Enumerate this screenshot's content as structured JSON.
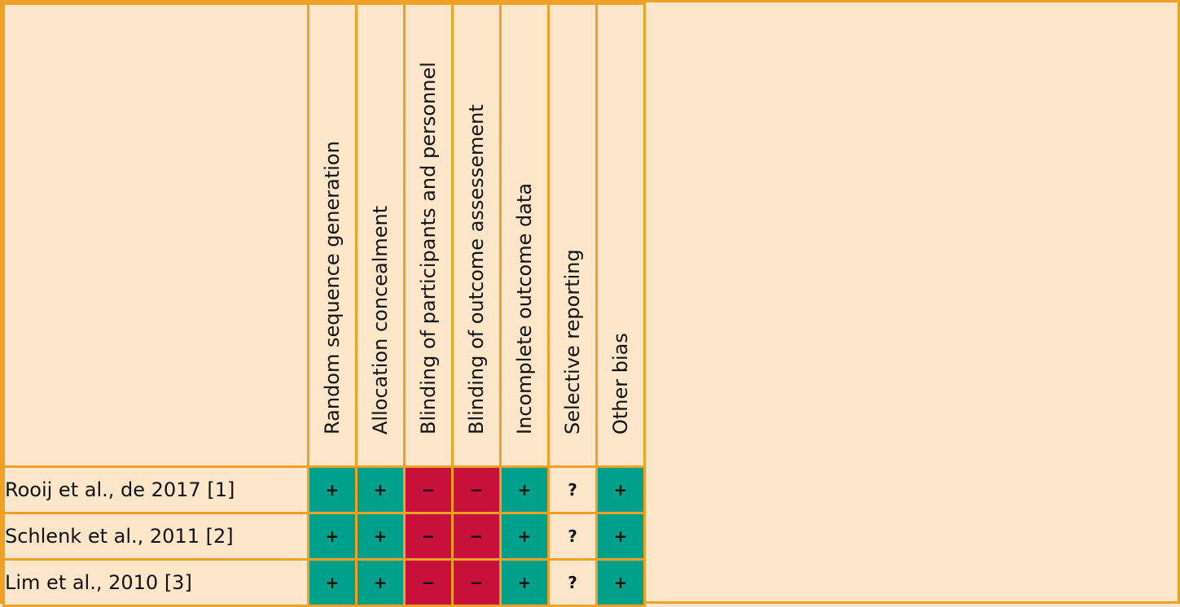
{
  "columns": [
    "Random sequence generation",
    "Allocation concealment",
    "Blinding of participants and personnel",
    "Blinding of outcome assessement",
    "Incomplete outcome data",
    "Selective reporting",
    "Other bias"
  ],
  "rows": [
    {
      "study": "Rooij et al., de 2017 [1]",
      "ratings": [
        "+",
        "+",
        "−",
        "−",
        "+",
        "?",
        "+"
      ]
    },
    {
      "study": "Schlenk et al., 2011 [2]",
      "ratings": [
        "+",
        "+",
        "−",
        "−",
        "+",
        "?",
        "+"
      ]
    },
    {
      "study": "Lim et al., 2010 [3]",
      "ratings": [
        "+",
        "+",
        "−",
        "−",
        "+",
        "?",
        "+"
      ]
    }
  ],
  "colors": {
    "low_risk": "#00a08a",
    "high_risk": "#c8103c",
    "unclear": "#fde6c9",
    "grid": "#f0a024",
    "background": "#fde6c9"
  }
}
